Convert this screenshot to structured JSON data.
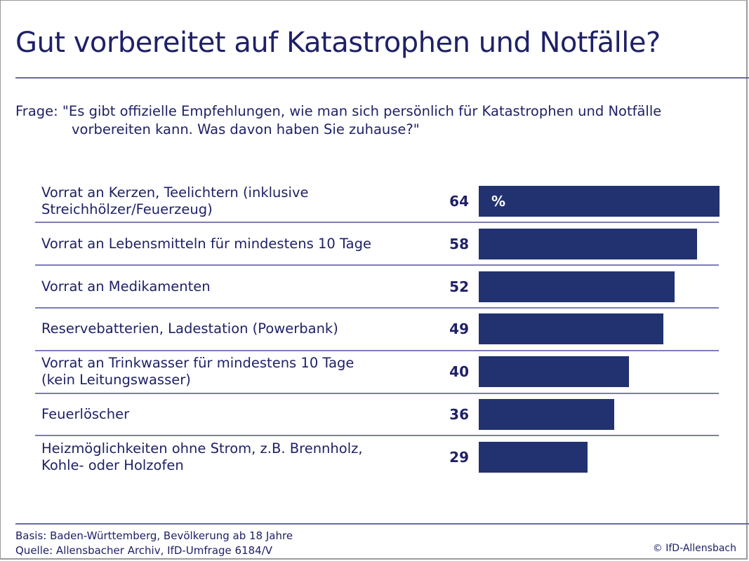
{
  "title": "Gut vorbereitet auf Katastrophen und Notfälle?",
  "question": {
    "label": "Frage:",
    "line1": "\"Es gibt offizielle Empfehlungen, wie man sich persönlich für Katastrophen und Notfälle",
    "line2": "vorbereiten kann. Was davon haben Sie zuhause?\""
  },
  "footer": {
    "basis": "Basis: Baden-Württemberg, Bevölkerung ab 18 Jahre",
    "quelle": "Quelle: Allensbacher Archiv, IfD-Umfrage 6184/V",
    "copyright": "© IfD-Allensbach"
  },
  "colors": {
    "text": "#1f2166",
    "bar": "#223170",
    "separator": "#7d7cb5"
  },
  "chart_data": {
    "type": "bar",
    "orientation": "horizontal",
    "title": "Gut vorbereitet auf Katastrophen und Notfälle?",
    "unit": "%",
    "unit_label": "%",
    "xlabel": "",
    "ylabel": "",
    "xlim": [
      0,
      64
    ],
    "grid": false,
    "legend": "none",
    "categories": [
      [
        "Vorrat an Kerzen, Teelichtern (inklusive",
        "Streichhölzer/Feuerzeug)"
      ],
      [
        "Vorrat an Lebensmitteln für mindestens 10 Tage"
      ],
      [
        "Vorrat an Medikamenten"
      ],
      [
        "Reservebatterien, Ladestation (Powerbank)"
      ],
      [
        "Vorrat an Trinkwasser für mindestens 10 Tage",
        "(kein Leitungswasser)"
      ],
      [
        "Feuerlöscher"
      ],
      [
        "Heizmöglichkeiten ohne Strom, z.B. Brennholz,",
        "Kohle- oder Holzofen"
      ]
    ],
    "values": [
      64,
      58,
      52,
      49,
      40,
      36,
      29
    ]
  }
}
